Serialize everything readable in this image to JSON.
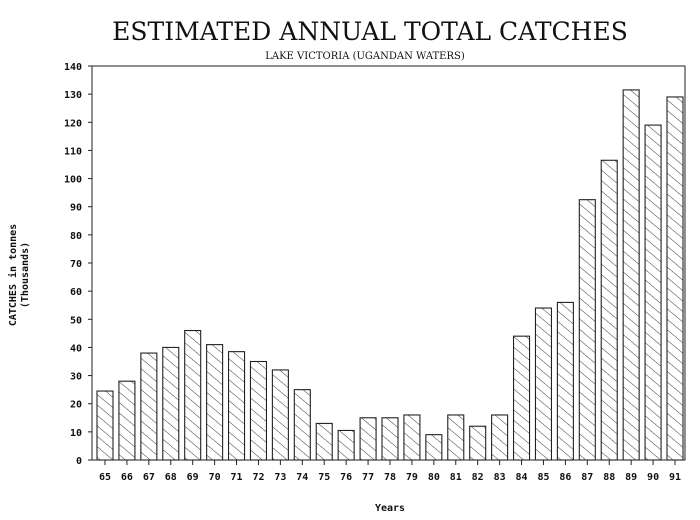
{
  "chart_data": {
    "type": "bar",
    "title": "ESTIMATED ANNUAL TOTAL CATCHES",
    "subtitle": "LAKE VICTORIA (UGANDAN WATERS)",
    "xlabel": "Years",
    "ylabel": "CATCHES in tonnes",
    "ylabel2": "(Thousands)",
    "ylim": [
      0,
      140
    ],
    "yticks": [
      0,
      10,
      20,
      30,
      40,
      50,
      60,
      70,
      80,
      90,
      100,
      110,
      120,
      130,
      140
    ],
    "categories": [
      "65",
      "66",
      "67",
      "68",
      "69",
      "70",
      "71",
      "72",
      "73",
      "74",
      "75",
      "76",
      "77",
      "78",
      "79",
      "80",
      "81",
      "82",
      "83",
      "84",
      "85",
      "86",
      "87",
      "88",
      "89",
      "90",
      "91"
    ],
    "values": [
      24.5,
      28,
      38,
      40,
      46,
      41,
      38.5,
      35,
      32,
      25,
      13,
      10.5,
      15,
      15,
      16,
      9,
      16,
      12,
      16,
      44,
      54,
      56,
      92.5,
      106.5,
      131.5,
      119,
      129
    ],
    "grid": false,
    "fill": "diagonal-hatch",
    "color": "#111111"
  }
}
